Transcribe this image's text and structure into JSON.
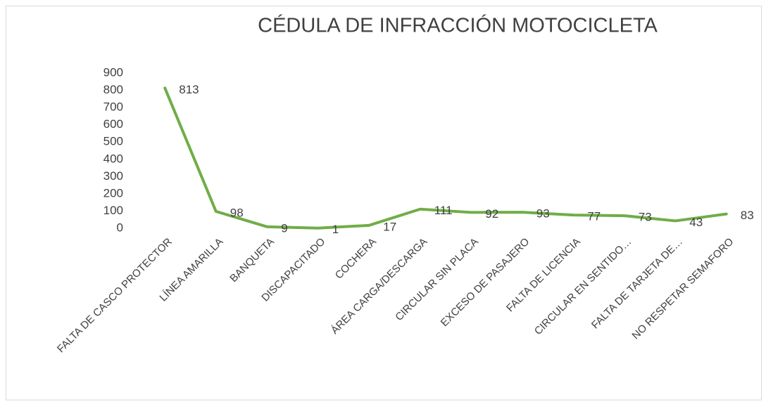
{
  "chart_data": {
    "type": "line",
    "title": "CÉDULA DE INFRACCIÓN MOTOCICLETA",
    "categories": [
      "FALTA DE CASCO PROTECTOR",
      "LÍNEA AMARILLA",
      "BANQUETA",
      "DISCAPACITADO",
      "COCHERA",
      "ÁREA CARGA/DESCARGA",
      "CIRCULAR SIN PLACA",
      "EXCESO DE PASAJERO",
      "FALTA DE LICENCIA",
      "CIRCULAR EN SENTIDO…",
      "FALTA DE TARJETA DE…",
      "NO RESPETAR SEMAFORO"
    ],
    "values": [
      813,
      98,
      9,
      1,
      17,
      111,
      92,
      93,
      77,
      73,
      43,
      83
    ],
    "color": "#70ad47",
    "ylim": [
      0,
      900
    ],
    "yticks": [
      0,
      100,
      200,
      300,
      400,
      500,
      600,
      700,
      800,
      900
    ],
    "grid": false
  }
}
